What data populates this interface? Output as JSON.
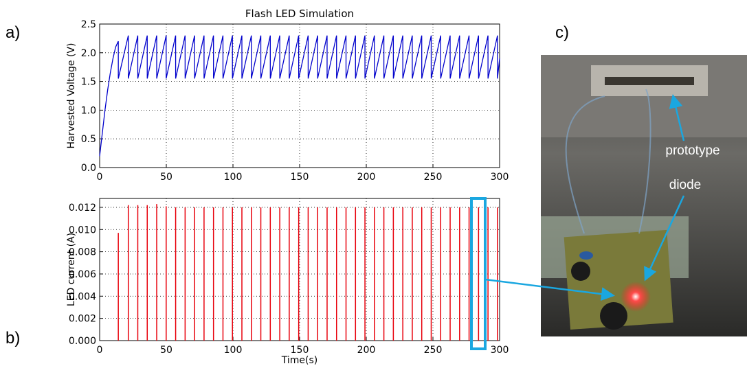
{
  "panel_labels": [
    "a)",
    "b)",
    "c)"
  ],
  "photo": {
    "labels": [
      "prototype",
      "diode"
    ]
  },
  "chart_data": [
    {
      "type": "line",
      "title": "Flash LED Simulation",
      "ylabel": "Harvested Voltage (V)",
      "x": [
        0,
        2,
        4,
        6,
        8,
        10,
        12,
        14,
        14,
        21.5,
        21.5,
        28.6,
        28.6,
        35.7,
        35.7,
        42.8,
        42.8,
        49.9,
        49.9,
        57,
        57,
        64.1,
        64.1,
        71.2,
        71.2,
        78.3,
        78.3,
        85.4,
        85.4,
        92.5,
        92.5,
        99.6,
        99.6,
        106.7,
        106.7,
        113.8,
        113.8,
        120.9,
        120.9,
        128,
        128,
        135.1,
        135.1,
        142.2,
        142.2,
        149.3,
        149.3,
        156.4,
        156.4,
        163.5,
        163.5,
        170.6,
        170.6,
        177.7,
        177.7,
        184.8,
        184.8,
        191.9,
        191.9,
        199,
        199,
        206.1,
        206.1,
        213.2,
        213.2,
        220.3,
        220.3,
        227.4,
        227.4,
        234.5,
        234.5,
        241.6,
        241.6,
        248.7,
        248.7,
        255.8,
        255.8,
        262.9,
        262.9,
        270,
        270,
        277.1,
        277.1,
        284.2,
        284.2,
        291.3,
        291.3,
        298.4,
        298.4,
        300
      ],
      "values": [
        0.2,
        0.6,
        1.0,
        1.35,
        1.65,
        1.9,
        2.1,
        2.2,
        1.55,
        2.3,
        1.55,
        2.3,
        1.55,
        2.3,
        1.55,
        2.3,
        1.55,
        2.3,
        1.55,
        2.3,
        1.55,
        2.3,
        1.55,
        2.3,
        1.55,
        2.3,
        1.55,
        2.3,
        1.55,
        2.3,
        1.55,
        2.3,
        1.55,
        2.3,
        1.55,
        2.3,
        1.55,
        2.3,
        1.55,
        2.3,
        1.55,
        2.3,
        1.55,
        2.3,
        1.55,
        2.3,
        1.55,
        2.3,
        1.55,
        2.3,
        1.55,
        2.3,
        1.55,
        2.3,
        1.55,
        2.3,
        1.55,
        2.3,
        1.55,
        2.3,
        1.55,
        2.3,
        1.55,
        2.3,
        1.55,
        2.3,
        1.55,
        2.3,
        1.55,
        2.3,
        1.55,
        2.3,
        1.55,
        2.3,
        1.55,
        2.3,
        1.55,
        2.3,
        1.55,
        2.3,
        1.55,
        2.3,
        1.55,
        2.3,
        1.55,
        2.3,
        1.55,
        2.3,
        1.55,
        1.9
      ],
      "color": "#0000cc",
      "xlim": [
        0,
        300
      ],
      "ylim": [
        0,
        2.5
      ],
      "xticks": [
        0,
        50,
        100,
        150,
        200,
        250,
        300
      ],
      "yticks": [
        {
          "value": 0,
          "label": "0.0"
        },
        0.5,
        {
          "value": 1,
          "label": "1.0"
        },
        1.5,
        {
          "value": 2,
          "label": "2.0"
        },
        2.5
      ],
      "grid": true
    },
    {
      "type": "stem",
      "ylabel": "LED current (A)",
      "xlabel": "Time(s)",
      "x": [
        14,
        21.5,
        28.6,
        35.7,
        42.8,
        49.9,
        57,
        64.1,
        71.2,
        78.3,
        85.4,
        92.5,
        99.6,
        106.7,
        113.8,
        120.9,
        128,
        135.1,
        142.2,
        149.3,
        156.4,
        163.5,
        170.6,
        177.7,
        184.8,
        191.9,
        199,
        206.1,
        213.2,
        220.3,
        227.4,
        234.5,
        241.6,
        248.7,
        255.8,
        262.9,
        270,
        277.1,
        284.2,
        291.3,
        298.4
      ],
      "values": [
        0.0097,
        0.0122,
        0.0122,
        0.0122,
        0.0123,
        0.0121,
        0.012,
        0.012,
        0.012,
        0.012,
        0.012,
        0.012,
        0.012,
        0.012,
        0.012,
        0.012,
        0.012,
        0.012,
        0.012,
        0.012,
        0.012,
        0.012,
        0.012,
        0.012,
        0.012,
        0.012,
        0.012,
        0.012,
        0.012,
        0.012,
        0.012,
        0.012,
        0.012,
        0.012,
        0.012,
        0.012,
        0.012,
        0.012,
        0.012,
        0.012,
        0.012
      ],
      "color": "#e8000b",
      "xlim": [
        0,
        300
      ],
      "ylim": [
        0,
        0.0128
      ],
      "xticks": [
        0,
        50,
        100,
        150,
        200,
        250,
        300
      ],
      "yticks": [
        {
          "value": 0,
          "label": "0.000"
        },
        {
          "value": 0.002,
          "label": "0.002"
        },
        {
          "value": 0.004,
          "label": "0.004"
        },
        {
          "value": 0.006,
          "label": "0.006"
        },
        {
          "value": 0.008,
          "label": "0.008"
        },
        {
          "value": 0.01,
          "label": "0.010"
        },
        {
          "value": 0.012,
          "label": "0.012"
        }
      ],
      "grid": true
    }
  ]
}
